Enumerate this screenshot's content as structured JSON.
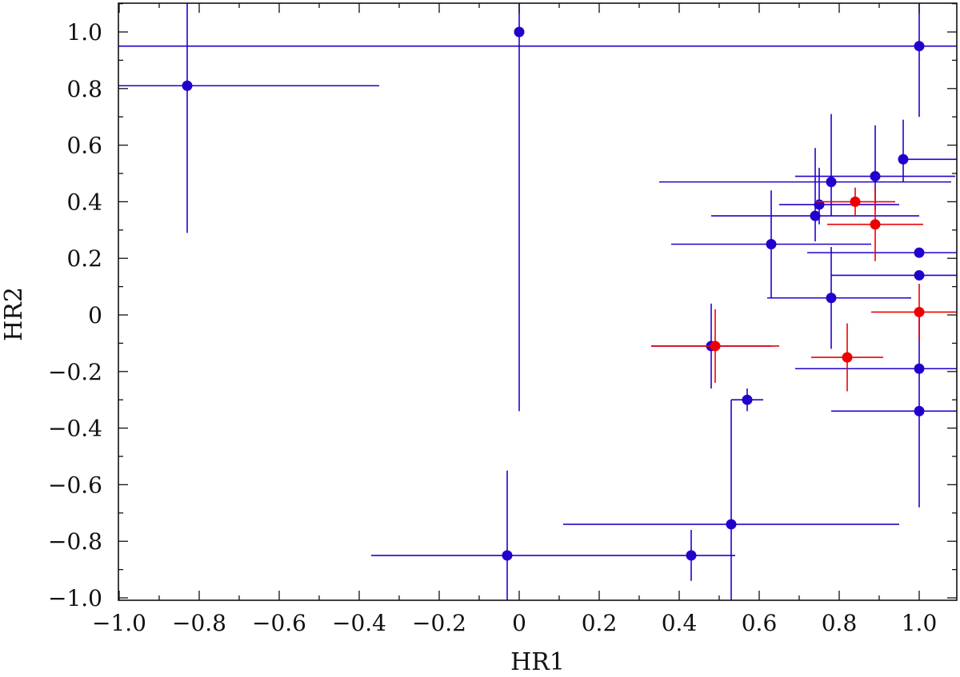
{
  "chart_data": {
    "type": "scatter",
    "title": "",
    "xlabel": "HR1",
    "ylabel": "HR2",
    "xlim": [
      -1.0,
      1.1
    ],
    "ylim": [
      -1.0,
      1.1
    ],
    "xticks": [
      -1.0,
      -0.8,
      -0.6,
      -0.4,
      -0.2,
      0,
      0.2,
      0.4,
      0.6,
      0.8,
      1.0
    ],
    "xtick_labels": [
      "−1.0",
      "−0.8",
      "−0.6",
      "−0.4",
      "−0.2",
      "0",
      "0.2",
      "0.4",
      "0.6",
      "0.8",
      "1.0"
    ],
    "yticks": [
      -1.0,
      -0.8,
      -0.6,
      -0.4,
      -0.2,
      0,
      0.2,
      0.4,
      0.6,
      0.8,
      1.0
    ],
    "ytick_labels": [
      "−1.0",
      "−0.8",
      "−0.6",
      "−0.4",
      "−0.2",
      "0",
      "0.2",
      "0.4",
      "0.6",
      "0.8",
      "1.0"
    ],
    "grid": false,
    "series": [
      {
        "color": "#2200cc",
        "points": [
          {
            "x": -0.83,
            "y": 0.81,
            "xerr": [
              0.35,
              0.48
            ],
            "yerr": [
              0.52,
              0.5
            ]
          },
          {
            "x": 0.0,
            "y": 1.0,
            "xerr": [
              0.0,
              0.0
            ],
            "yerr": [
              1.34,
              0.2
            ]
          },
          {
            "x": 1.0,
            "y": 0.95,
            "xerr": [
              2.1,
              0.2
            ],
            "yerr": [
              0.25,
              0.2
            ]
          },
          {
            "x": 0.96,
            "y": 0.55,
            "xerr": [
              0.0,
              0.2
            ],
            "yerr": [
              0.08,
              0.14
            ]
          },
          {
            "x": 0.89,
            "y": 0.49,
            "xerr": [
              0.2,
              0.2
            ],
            "yerr": [
              0.12,
              0.18
            ]
          },
          {
            "x": 0.78,
            "y": 0.47,
            "xerr": [
              0.43,
              0.3
            ],
            "yerr": [
              0.12,
              0.24
            ]
          },
          {
            "x": 0.75,
            "y": 0.39,
            "xerr": [
              0.1,
              0.2
            ],
            "yerr": [
              0.07,
              0.13
            ]
          },
          {
            "x": 0.74,
            "y": 0.35,
            "xerr": [
              0.26,
              0.26
            ],
            "yerr": [
              0.09,
              0.24
            ]
          },
          {
            "x": 0.63,
            "y": 0.25,
            "xerr": [
              0.25,
              0.25
            ],
            "yerr": [
              0.19,
              0.19
            ]
          },
          {
            "x": 1.0,
            "y": 0.22,
            "xerr": [
              0.28,
              0.2
            ],
            "yerr": [
              0.0,
              0.0
            ]
          },
          {
            "x": 1.0,
            "y": 0.14,
            "xerr": [
              0.22,
              0.2
            ],
            "yerr": [
              0.0,
              0.0
            ]
          },
          {
            "x": 0.78,
            "y": 0.06,
            "xerr": [
              0.16,
              0.2
            ],
            "yerr": [
              0.18,
              0.18
            ]
          },
          {
            "x": 0.48,
            "y": -0.11,
            "xerr": [
              0.15,
              0.15
            ],
            "yerr": [
              0.15,
              0.15
            ]
          },
          {
            "x": 1.0,
            "y": -0.19,
            "xerr": [
              0.31,
              0.2
            ],
            "yerr": [
              0.0,
              0.0
            ]
          },
          {
            "x": 0.57,
            "y": -0.3,
            "xerr": [
              0.04,
              0.04
            ],
            "yerr": [
              0.04,
              0.04
            ]
          },
          {
            "x": 1.0,
            "y": -0.34,
            "xerr": [
              0.22,
              0.2
            ],
            "yerr": [
              0.34,
              0.34
            ]
          },
          {
            "x": 0.53,
            "y": -0.74,
            "xerr": [
              0.42,
              0.42
            ],
            "yerr": [
              0.44,
              0.44
            ]
          },
          {
            "x": -0.03,
            "y": -0.85,
            "xerr": [
              0.34,
              0.34
            ],
            "yerr": [
              0.3,
              0.3
            ]
          },
          {
            "x": 0.43,
            "y": -0.85,
            "xerr": [
              0.12,
              0.11
            ],
            "yerr": [
              0.09,
              0.09
            ]
          }
        ]
      },
      {
        "color": "#ee0000",
        "points": [
          {
            "x": 0.84,
            "y": 0.4,
            "xerr": [
              0.1,
              0.1
            ],
            "yerr": [
              0.05,
              0.05
            ]
          },
          {
            "x": 0.89,
            "y": 0.32,
            "xerr": [
              0.12,
              0.12
            ],
            "yerr": [
              0.13,
              0.13
            ]
          },
          {
            "x": 1.0,
            "y": 0.01,
            "xerr": [
              0.12,
              0.2
            ],
            "yerr": [
              0.1,
              0.1
            ]
          },
          {
            "x": 0.49,
            "y": -0.11,
            "xerr": [
              0.16,
              0.16
            ],
            "yerr": [
              0.13,
              0.13
            ]
          },
          {
            "x": 0.82,
            "y": -0.15,
            "xerr": [
              0.09,
              0.09
            ],
            "yerr": [
              0.12,
              0.12
            ]
          }
        ]
      }
    ]
  }
}
